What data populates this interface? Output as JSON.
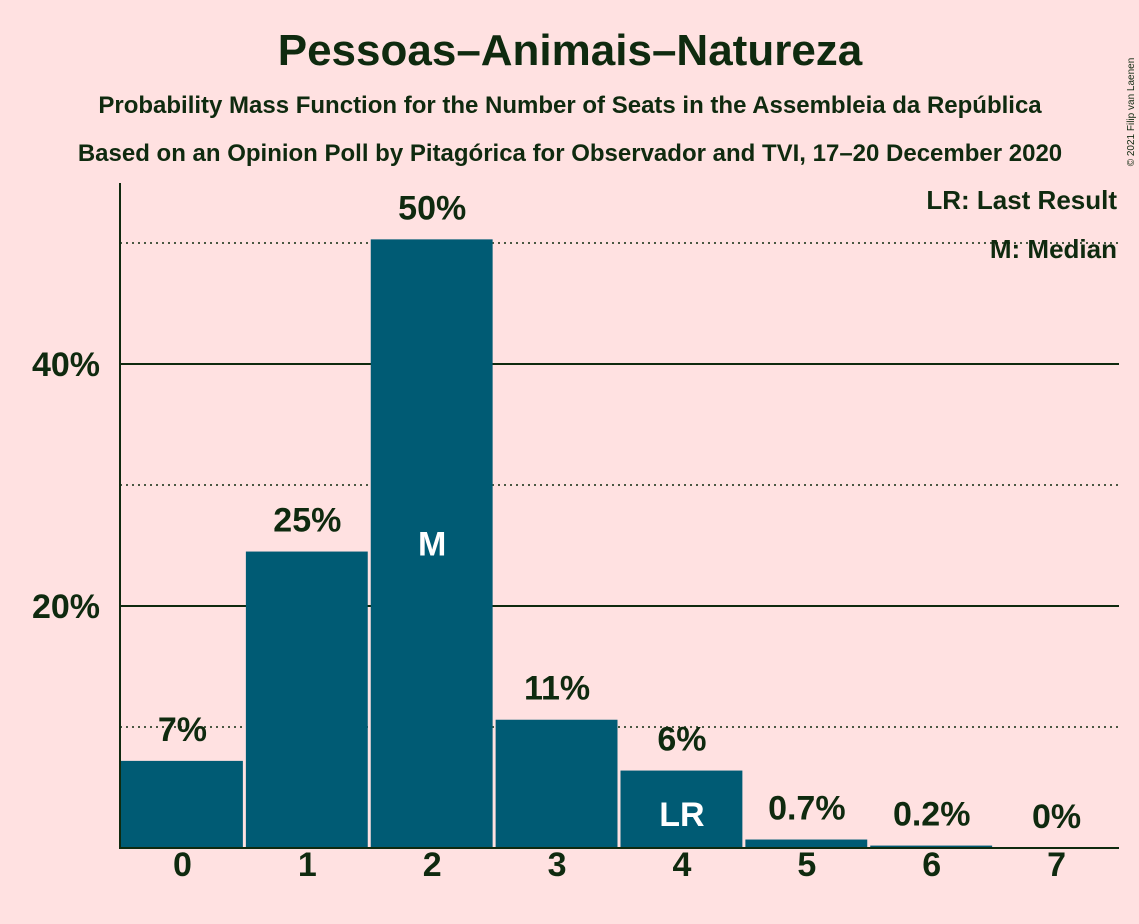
{
  "chart_data": {
    "type": "bar",
    "title": "Pessoas–Animais–Natureza",
    "subtitle_1": "Probability Mass Function for the Number of Seats in the Assembleia da República",
    "subtitle_2": "Based on an Opinion Poll by Pitagórica for Observador and TVI, 17–20 December 2020",
    "copyright": "© 2021 Filip van Laenen",
    "legend": {
      "last_result": "LR: Last Result",
      "median": "M: Median",
      "position": "top-right"
    },
    "categories": [
      "0",
      "1",
      "2",
      "3",
      "4",
      "5",
      "6",
      "7"
    ],
    "values": [
      7.2,
      24.5,
      50.3,
      10.6,
      6.4,
      0.7,
      0.2,
      0.0
    ],
    "labels": [
      "7%",
      "25%",
      "50%",
      "11%",
      "6%",
      "0.7%",
      "0.2%",
      "0%"
    ],
    "median_index": 2,
    "median_marker": "M",
    "last_result_index": 4,
    "last_result_marker": "LR",
    "ylim": [
      0,
      55
    ],
    "yticks_major": [
      20,
      40
    ],
    "ytick_labels": [
      "20%",
      "40%"
    ],
    "yticks_minor": [
      10,
      30,
      50
    ],
    "grid": true,
    "bar_color": "#005B74",
    "background": "#FFE1E1",
    "text_color": "#0F2A0F"
  }
}
